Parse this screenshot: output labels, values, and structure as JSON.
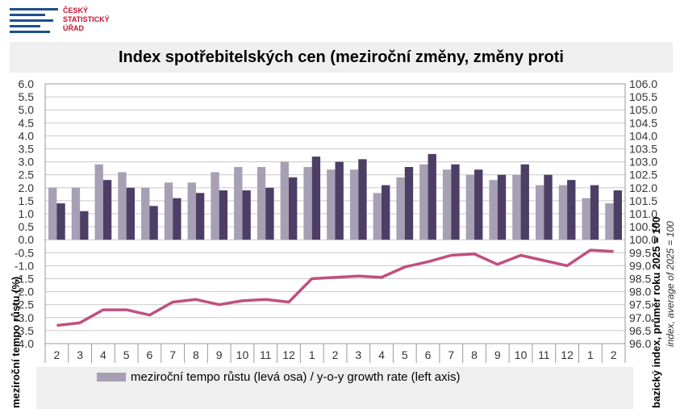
{
  "logo": {
    "line1": "ČESKÝ",
    "line2": "STATISTICKÝ",
    "line3": "ÚŘAD"
  },
  "colors": {
    "bar_light": "#a79fb4",
    "bar_dark": "#4d3e66",
    "line": "#c0507e",
    "logo_blue": "#1f4e8c",
    "logo_red": "#c8102e"
  },
  "chart_data": {
    "type": "bar",
    "title": "Index spotřebitelských cen (meziroční změny, změny proti",
    "categories": [
      "2",
      "3",
      "4",
      "5",
      "6",
      "7",
      "8",
      "9",
      "10",
      "11",
      "12",
      "1",
      "2",
      "3",
      "4",
      "5",
      "6",
      "7",
      "8",
      "9",
      "10",
      "11",
      "12",
      "1",
      "2"
    ],
    "series": [
      {
        "name": "meziroční tempo růstu (levá osa) / y-o-y growth rate (left axis)",
        "axis": "left",
        "type": "bar",
        "values": [
          2.0,
          2.0,
          2.9,
          2.6,
          2.0,
          2.2,
          2.2,
          2.6,
          2.8,
          2.8,
          3.0,
          2.8,
          2.7,
          2.7,
          1.8,
          2.4,
          2.9,
          2.7,
          2.5,
          2.3,
          2.5,
          2.1,
          2.1,
          1.6,
          1.4
        ]
      },
      {
        "axis": "left",
        "type": "bar",
        "values": [
          1.4,
          1.1,
          2.3,
          2.0,
          1.3,
          1.6,
          1.8,
          1.9,
          1.9,
          2.0,
          2.4,
          3.2,
          3.0,
          3.1,
          2.1,
          2.8,
          3.3,
          2.9,
          2.7,
          2.5,
          2.9,
          2.5,
          2.3,
          2.1,
          1.9
        ]
      },
      {
        "axis": "right",
        "type": "line",
        "values": [
          96.7,
          96.8,
          97.3,
          97.3,
          97.1,
          97.6,
          97.7,
          97.5,
          97.65,
          97.7,
          97.6,
          98.5,
          98.55,
          98.6,
          98.55,
          98.95,
          99.15,
          99.4,
          99.45,
          99.05,
          99.4,
          99.2,
          99.0,
          99.6,
          99.55
        ]
      }
    ],
    "left_axis": {
      "ylim": [
        -4.0,
        6.0
      ],
      "ticks": [
        "6.0",
        "5.5",
        "5.0",
        "4.5",
        "4.0",
        "3.5",
        "3.0",
        "2.5",
        "2.0",
        "1.5",
        "1.0",
        "0.5",
        "0.0",
        "-0.5",
        "-1.0",
        "-1.5",
        "-2.0",
        "-2.5",
        "-3.0",
        "-3.5",
        "-4.0"
      ],
      "label": "meziroční tempo růstu (%)"
    },
    "right_axis": {
      "ylim": [
        96.0,
        106.0
      ],
      "ticks": [
        "106.0",
        "105.5",
        "105.0",
        "104.5",
        "104.0",
        "103.5",
        "103.0",
        "102.5",
        "102.0",
        "101.5",
        "101.0",
        "100.5",
        "100.0",
        "99.5",
        "99.0",
        "98.5",
        "98.0",
        "97.5",
        "97.0",
        "96.5",
        "96.0"
      ],
      "label": "bazický index, průměr roku 2025 = 100",
      "label2": "index, average of 2025 = 100"
    },
    "grid": true,
    "legend": "bottom"
  }
}
